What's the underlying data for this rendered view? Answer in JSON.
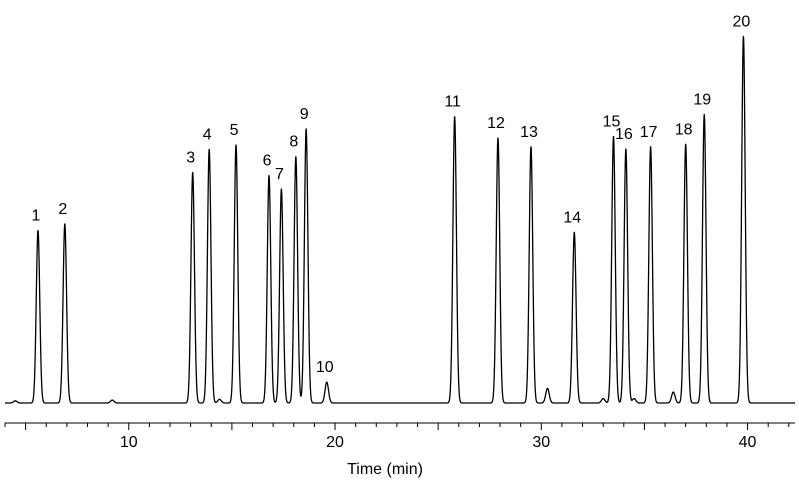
{
  "chart_data": {
    "type": "line",
    "title": "",
    "xlabel": "Time (min)",
    "ylabel": "",
    "xlim": [
      4,
      42.3
    ],
    "ylim": [
      0,
      1
    ],
    "xticks": [
      10,
      20,
      30,
      40
    ],
    "xtick_labels": [
      "10",
      "20",
      "30",
      "40"
    ],
    "baseline": 0.0,
    "line_color": "#000000",
    "peaks": [
      {
        "label": "1",
        "time": 5.6,
        "height": 0.47
      },
      {
        "label": "2",
        "time": 6.9,
        "height": 0.488
      },
      {
        "label": "3",
        "time": 13.1,
        "height": 0.628
      },
      {
        "label": "4",
        "time": 13.9,
        "height": 0.691
      },
      {
        "label": "5",
        "time": 15.2,
        "height": 0.703
      },
      {
        "label": "6",
        "time": 16.8,
        "height": 0.62
      },
      {
        "label": "7",
        "time": 17.4,
        "height": 0.583
      },
      {
        "label": "8",
        "time": 18.1,
        "height": 0.671
      },
      {
        "label": "9",
        "time": 18.6,
        "height": 0.747
      },
      {
        "label": "10",
        "time": 19.6,
        "height": 0.057
      },
      {
        "label": "11",
        "time": 25.8,
        "height": 0.78
      },
      {
        "label": "12",
        "time": 27.9,
        "height": 0.722
      },
      {
        "label": "13",
        "time": 29.5,
        "height": 0.698
      },
      {
        "label": "14",
        "time": 31.6,
        "height": 0.465
      },
      {
        "label": "15",
        "time": 33.5,
        "height": 0.726
      },
      {
        "label": "16",
        "time": 34.1,
        "height": 0.692
      },
      {
        "label": "17",
        "time": 35.3,
        "height": 0.698
      },
      {
        "label": "18",
        "time": 37.0,
        "height": 0.705
      },
      {
        "label": "19",
        "time": 37.9,
        "height": 0.786
      },
      {
        "label": "20",
        "time": 39.8,
        "height": 0.999
      }
    ],
    "minor_peaks": [
      {
        "time": 4.5,
        "height": 0.006
      },
      {
        "time": 9.2,
        "height": 0.008
      },
      {
        "time": 14.4,
        "height": 0.01
      },
      {
        "time": 30.3,
        "height": 0.04
      },
      {
        "time": 33.0,
        "height": 0.012
      },
      {
        "time": 34.5,
        "height": 0.012
      },
      {
        "time": 36.4,
        "height": 0.03
      }
    ]
  }
}
